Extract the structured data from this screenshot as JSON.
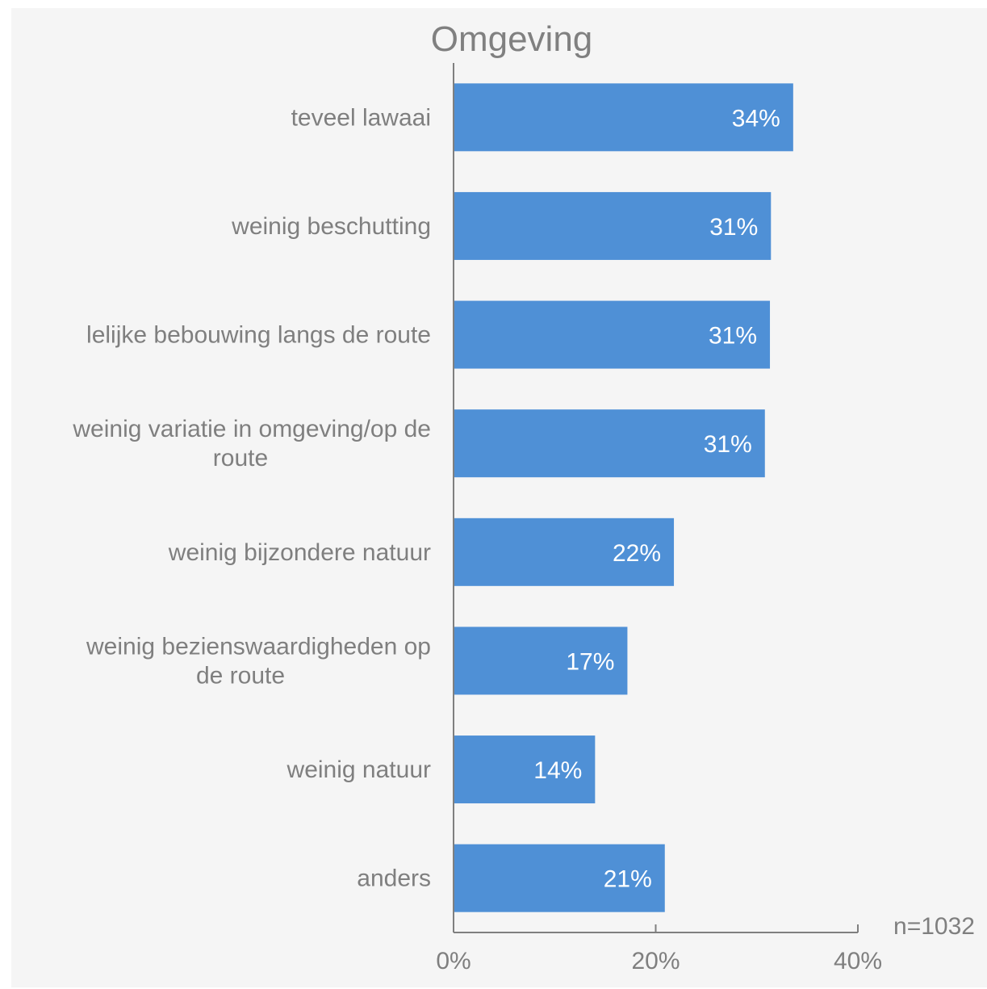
{
  "chart_data": {
    "type": "bar",
    "orientation": "horizontal",
    "title": "Omgeving",
    "categories": [
      [
        "teveel lawaai"
      ],
      [
        "weinig beschutting"
      ],
      [
        "lelijke bebouwing langs de route"
      ],
      [
        "weinig variatie in omgeving/op de",
        "route"
      ],
      [
        "weinig bijzondere natuur"
      ],
      [
        "weinig bezienswaardigheden op",
        "de route"
      ],
      [
        "weinig natuur"
      ],
      [
        "anders"
      ]
    ],
    "values": [
      33.6,
      31.4,
      31.3,
      30.8,
      21.8,
      17.2,
      14.0,
      20.9
    ],
    "data_labels": [
      "34%",
      "31%",
      "31%",
      "31%",
      "22%",
      "17%",
      "14%",
      "21%"
    ],
    "xlim": [
      0,
      40
    ],
    "x_ticks": [
      0,
      20,
      40
    ],
    "x_tick_labels": [
      "0%",
      "20%",
      "40%"
    ],
    "bar_color": "#4f90d6",
    "grid": false,
    "legend": "none",
    "note": "n=1032"
  }
}
